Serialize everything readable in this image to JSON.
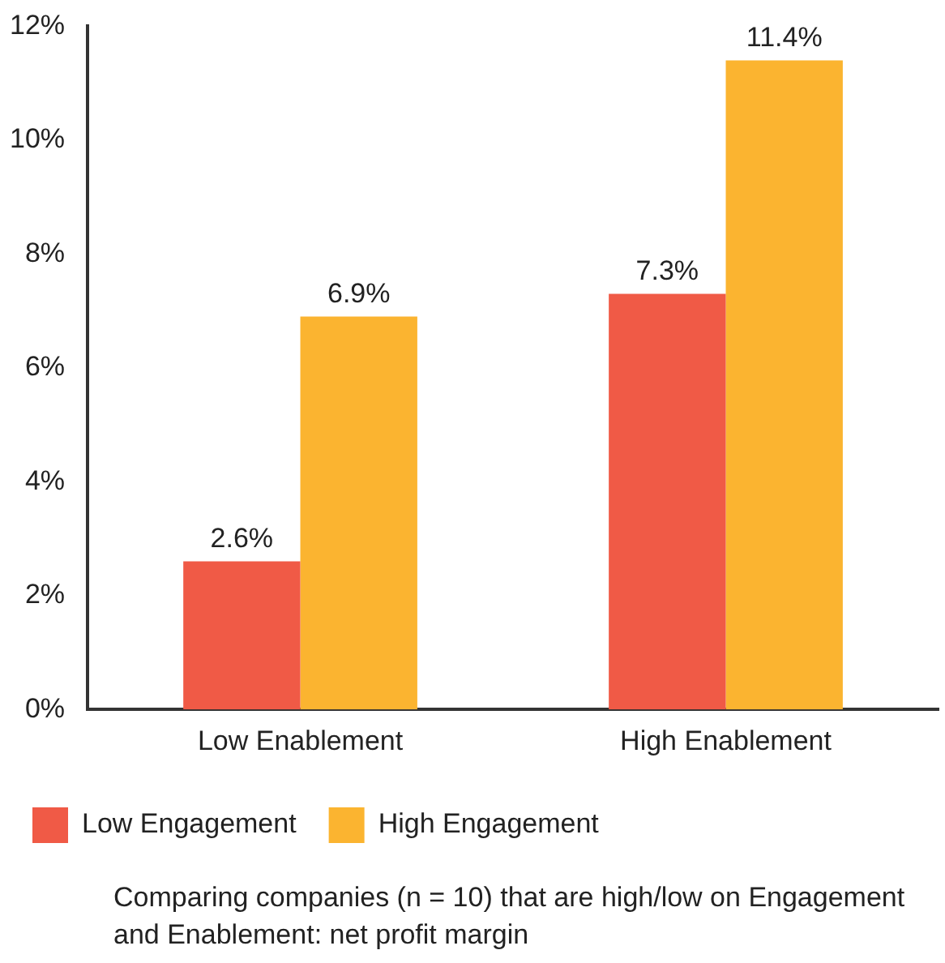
{
  "chart_data": {
    "type": "bar",
    "categories": [
      "Low Enablement",
      "High Enablement"
    ],
    "series": [
      {
        "name": "Low Engagement",
        "color": "#f05a46",
        "values": [
          2.6,
          7.3
        ]
      },
      {
        "name": "High Engagement",
        "color": "#fbb430",
        "values": [
          6.9,
          11.4
        ]
      }
    ],
    "ylim": [
      0,
      12
    ],
    "yticks": [
      {
        "value": 0,
        "label": "0%"
      },
      {
        "value": 2,
        "label": "2%"
      },
      {
        "value": 4,
        "label": "4%"
      },
      {
        "value": 6,
        "label": "6%"
      },
      {
        "value": 8,
        "label": "8%"
      },
      {
        "value": 10,
        "label": "10%"
      },
      {
        "value": 12,
        "label": "12%"
      }
    ],
    "value_labels": [
      [
        "2.6%",
        "7.3%"
      ],
      [
        "6.9%",
        "11.4%"
      ]
    ],
    "grid": false,
    "legend": "bottom left",
    "annotations": [
      "Comparing companies (n = 10) that are high/low on Engagement and Enablement: net profit margin"
    ]
  }
}
